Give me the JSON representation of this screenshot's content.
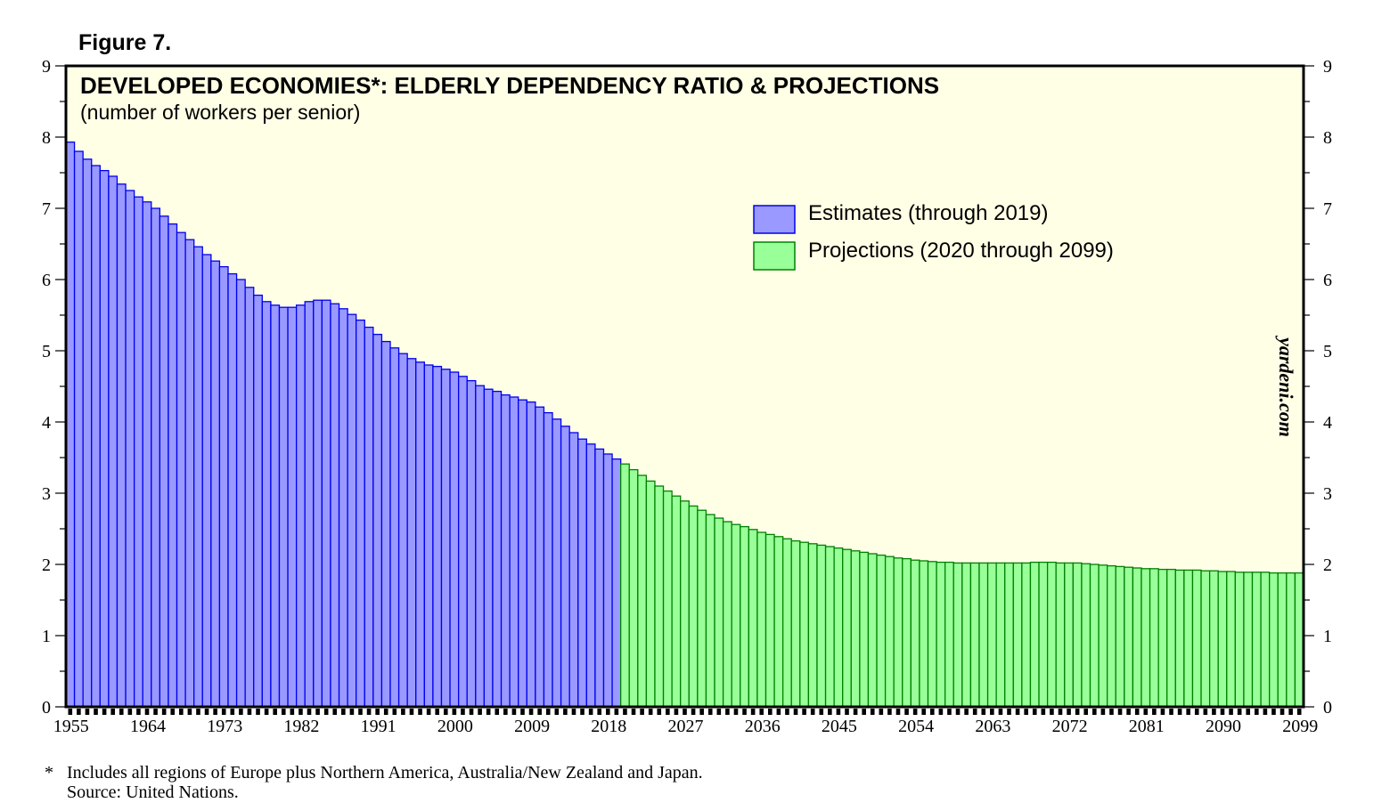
{
  "figure_label": "Figure 7.",
  "chart_data": {
    "type": "bar",
    "title": "DEVELOPED ECONOMIES*: ELDERLY DEPENDENCY RATIO & PROJECTIONS",
    "subtitle": "(number of workers per senior)",
    "xlabel": "",
    "ylabel": "",
    "ylim": [
      0,
      9
    ],
    "yticks": [
      "0",
      "1",
      "2",
      "3",
      "4",
      "5",
      "6",
      "7",
      "8",
      "9"
    ],
    "x_start": 1955,
    "x_end": 2099,
    "xtick_labels": [
      "1955",
      "1964",
      "1973",
      "1982",
      "1991",
      "2000",
      "2009",
      "2018",
      "2027",
      "2036",
      "2045",
      "2054",
      "2063",
      "2072",
      "2081",
      "2090",
      "2099"
    ],
    "legend_placement": "top-right",
    "watermark": "yardeni.com",
    "series": [
      {
        "name": "Estimates (through 2019)",
        "color": "#9999FF",
        "stroke": "#0000EE",
        "start_year": 1955,
        "values": [
          7.93,
          7.8,
          7.69,
          7.6,
          7.53,
          7.45,
          7.34,
          7.25,
          7.16,
          7.09,
          7.0,
          6.89,
          6.78,
          6.66,
          6.56,
          6.46,
          6.35,
          6.26,
          6.18,
          6.08,
          6.0,
          5.89,
          5.78,
          5.69,
          5.64,
          5.61,
          5.61,
          5.64,
          5.69,
          5.71,
          5.71,
          5.66,
          5.59,
          5.51,
          5.43,
          5.33,
          5.23,
          5.13,
          5.04,
          4.96,
          4.89,
          4.84,
          4.8,
          4.78,
          4.74,
          4.7,
          4.64,
          4.58,
          4.51,
          4.46,
          4.43,
          4.38,
          4.35,
          4.31,
          4.28,
          4.21,
          4.13,
          4.04,
          3.94,
          3.85,
          3.76,
          3.69,
          3.62,
          3.55,
          3.48
        ]
      },
      {
        "name": "Projections (2020 through 2099)",
        "color": "#99FF99",
        "stroke": "#008000",
        "start_year": 2020,
        "values": [
          3.41,
          3.33,
          3.25,
          3.17,
          3.1,
          3.03,
          2.96,
          2.89,
          2.82,
          2.76,
          2.7,
          2.65,
          2.6,
          2.56,
          2.53,
          2.49,
          2.45,
          2.42,
          2.39,
          2.36,
          2.33,
          2.31,
          2.29,
          2.27,
          2.25,
          2.23,
          2.21,
          2.19,
          2.17,
          2.15,
          2.13,
          2.11,
          2.09,
          2.08,
          2.06,
          2.05,
          2.04,
          2.03,
          2.03,
          2.02,
          2.02,
          2.02,
          2.02,
          2.02,
          2.02,
          2.02,
          2.02,
          2.02,
          2.03,
          2.03,
          2.03,
          2.02,
          2.02,
          2.02,
          2.01,
          2.0,
          1.99,
          1.98,
          1.97,
          1.96,
          1.95,
          1.94,
          1.94,
          1.93,
          1.93,
          1.92,
          1.92,
          1.92,
          1.91,
          1.91,
          1.9,
          1.9,
          1.89,
          1.89,
          1.89,
          1.89,
          1.88,
          1.88,
          1.88,
          1.88
        ]
      }
    ]
  },
  "footnote": {
    "marker": "*",
    "text": "Includes all regions of Europe plus Northern America, Australia/New Zealand and Japan.",
    "source": "Source: United Nations."
  }
}
